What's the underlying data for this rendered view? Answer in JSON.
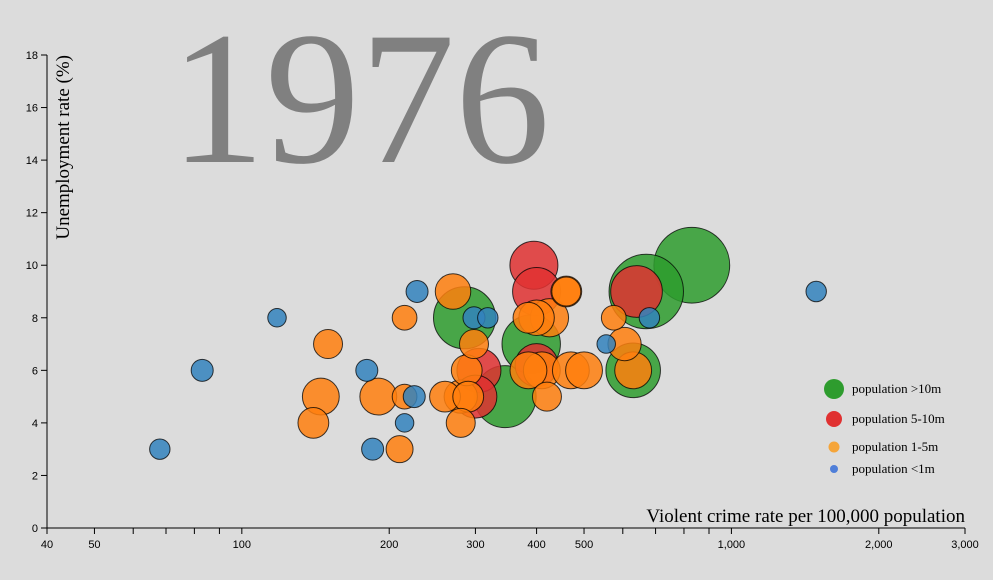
{
  "year": "1976",
  "chart_data": {
    "type": "scatter",
    "x_scale": "log",
    "xlim": [
      40,
      3000
    ],
    "ylim": [
      0,
      18
    ],
    "xlabel": "Violent crime rate per 100,000 population",
    "ylabel": "Unemployment rate (%)",
    "x_ticks": [
      {
        "value": 40,
        "label": "40"
      },
      {
        "value": 50,
        "label": "50"
      },
      {
        "value": 100,
        "label": "100"
      },
      {
        "value": 200,
        "label": "200"
      },
      {
        "value": 300,
        "label": "300"
      },
      {
        "value": 400,
        "label": "400"
      },
      {
        "value": 500,
        "label": "500"
      },
      {
        "value": 1000,
        "label": "1,000"
      },
      {
        "value": 2000,
        "label": "2,000"
      },
      {
        "value": 3000,
        "label": "3,000"
      }
    ],
    "x_minor_ticks": [
      60,
      70,
      80,
      90,
      600,
      700,
      800,
      900
    ],
    "y_ticks": [
      0,
      2,
      4,
      6,
      8,
      10,
      12,
      14,
      16,
      18
    ],
    "legend": [
      {
        "label": "population >10m",
        "color": "#2e9c2e"
      },
      {
        "label": "population 5-10m",
        "color": "#e03131"
      },
      {
        "label": "population 1-5m",
        "color": "#f5a53a"
      },
      {
        "label": "population <1m",
        "color": "#4f7fd9"
      }
    ],
    "series": [
      {
        "name": "population >10m",
        "color": "#2e9c2e",
        "points": [
          {
            "x": 830,
            "y": 10.0,
            "size": 12.0
          },
          {
            "x": 670,
            "y": 9.0,
            "size": 11.5
          },
          {
            "x": 285,
            "y": 8.0,
            "size": 7.5
          },
          {
            "x": 390,
            "y": 7.0,
            "size": 6.5
          },
          {
            "x": 345,
            "y": 5.0,
            "size": 7.5
          },
          {
            "x": 630,
            "y": 6.0,
            "size": 5.5
          }
        ]
      },
      {
        "name": "population 5-10m",
        "color": "#e03131",
        "points": [
          {
            "x": 395,
            "y": 10.0,
            "size": 4.0
          },
          {
            "x": 400,
            "y": 9.0,
            "size": 4.0
          },
          {
            "x": 640,
            "y": 9.0,
            "size": 4.8
          },
          {
            "x": 305,
            "y": 6.0,
            "size": 3.2
          },
          {
            "x": 400,
            "y": 6.2,
            "size": 3.0
          },
          {
            "x": 300,
            "y": 5.0,
            "size": 3.0
          }
        ]
      },
      {
        "name": "population 1-5m",
        "color": "#ff7f0e",
        "points": [
          {
            "x": 270,
            "y": 9.0,
            "size": 1.8
          },
          {
            "x": 460,
            "y": 9.0,
            "size": 1.2
          },
          {
            "x": 460,
            "y": 9.0,
            "size": 1.0
          },
          {
            "x": 215,
            "y": 8.0,
            "size": 0.6
          },
          {
            "x": 400,
            "y": 8.0,
            "size": 1.8
          },
          {
            "x": 385,
            "y": 8.0,
            "size": 1.2
          },
          {
            "x": 425,
            "y": 8.0,
            "size": 2.2
          },
          {
            "x": 575,
            "y": 8.0,
            "size": 0.6
          },
          {
            "x": 150,
            "y": 7.0,
            "size": 1.0
          },
          {
            "x": 298,
            "y": 7.0,
            "size": 1.0
          },
          {
            "x": 605,
            "y": 7.0,
            "size": 1.5
          },
          {
            "x": 288,
            "y": 6.0,
            "size": 1.2
          },
          {
            "x": 410,
            "y": 6.0,
            "size": 2.0
          },
          {
            "x": 385,
            "y": 6.0,
            "size": 2.0
          },
          {
            "x": 470,
            "y": 6.0,
            "size": 2.0
          },
          {
            "x": 500,
            "y": 6.0,
            "size": 2.0
          },
          {
            "x": 630,
            "y": 6.0,
            "size": 2.0
          },
          {
            "x": 145,
            "y": 5.0,
            "size": 2.0
          },
          {
            "x": 190,
            "y": 5.0,
            "size": 2.0
          },
          {
            "x": 215,
            "y": 5.0,
            "size": 0.6
          },
          {
            "x": 260,
            "y": 5.0,
            "size": 1.2
          },
          {
            "x": 290,
            "y": 5.0,
            "size": 1.2
          },
          {
            "x": 280,
            "y": 5.0,
            "size": 1.5
          },
          {
            "x": 420,
            "y": 5.0,
            "size": 1.0
          },
          {
            "x": 140,
            "y": 4.0,
            "size": 1.2
          },
          {
            "x": 280,
            "y": 4.0,
            "size": 1.0
          },
          {
            "x": 210,
            "y": 3.0,
            "size": 0.8
          }
        ]
      },
      {
        "name": "population <1m",
        "color": "#3282bd",
        "points": [
          {
            "x": 228,
            "y": 9.0,
            "size": 0.4
          },
          {
            "x": 1490,
            "y": 9.0,
            "size": 0.3
          },
          {
            "x": 118,
            "y": 8.0,
            "size": 0.2
          },
          {
            "x": 298,
            "y": 8.0,
            "size": 0.4
          },
          {
            "x": 318,
            "y": 8.0,
            "size": 0.3
          },
          {
            "x": 680,
            "y": 8.0,
            "size": 0.3
          },
          {
            "x": 555,
            "y": 7.0,
            "size": 0.2
          },
          {
            "x": 83,
            "y": 6.0,
            "size": 0.4
          },
          {
            "x": 180,
            "y": 6.0,
            "size": 0.4
          },
          {
            "x": 225,
            "y": 5.0,
            "size": 0.4
          },
          {
            "x": 215,
            "y": 4.0,
            "size": 0.2
          },
          {
            "x": 68,
            "y": 3.0,
            "size": 0.3
          },
          {
            "x": 185,
            "y": 3.0,
            "size": 0.4
          }
        ]
      }
    ]
  }
}
